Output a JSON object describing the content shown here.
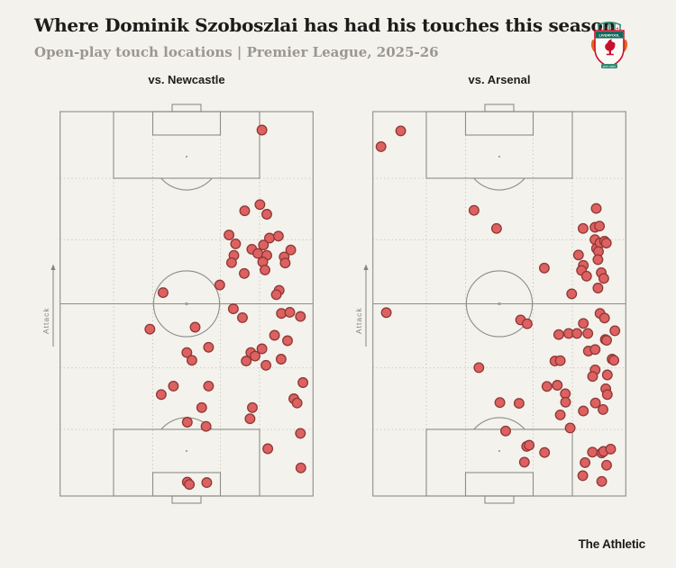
{
  "header": {
    "title": "Where Dominik Szoboszlai has had his touches this season",
    "subtitle": "Open-play touch locations | Premier League, 2025-26"
  },
  "branding": {
    "footer": "The Athletic",
    "crest_name": "Liverpool FC crest",
    "crest_banner": "LIVERPOOL",
    "crest_est": "EST·1892"
  },
  "pitch": {
    "attack_label": "Attack",
    "attack_direction": "up"
  },
  "colors": {
    "background": "#f3f2ec",
    "pitch_line": "#8d8d89",
    "grid_dotted": "#c6c3ba",
    "dot_fill": "#dd6161",
    "dot_stroke": "#8e3734",
    "title_text": "#1d1c1a",
    "subtitle_text": "#9b978e",
    "crest_red": "#c8102e",
    "crest_teal": "#2f8a6f",
    "crest_flame_orange": "#e2661c"
  },
  "chart_data": [
    {
      "type": "scatter",
      "title": "vs. Newcastle",
      "legend_position": "none",
      "grid": "dotted pitch thirds",
      "axes_note": "x: 0 = left touchline, 100 = right touchline; y: 0 = opponent goal line (attack arrow points toward 0), 100 = own goal line",
      "x_range": [
        0,
        100
      ],
      "y_range": [
        0,
        100
      ],
      "points_count": 59,
      "points": [
        [
          79.8,
          4.8
        ],
        [
          73,
          25.8
        ],
        [
          79,
          24.2
        ],
        [
          81.7,
          26.7
        ],
        [
          66.8,
          32.1
        ],
        [
          69.4,
          34.4
        ],
        [
          82.8,
          32.9
        ],
        [
          86.3,
          32.4
        ],
        [
          80.4,
          34.7
        ],
        [
          75.8,
          35.8
        ],
        [
          78.2,
          36.9
        ],
        [
          81.7,
          37.4
        ],
        [
          88.6,
          37.8
        ],
        [
          91.2,
          36
        ],
        [
          68.7,
          37.4
        ],
        [
          67.8,
          39.3
        ],
        [
          80.1,
          39.1
        ],
        [
          81,
          41.2
        ],
        [
          72.8,
          42.1
        ],
        [
          89,
          39.4
        ],
        [
          63.1,
          45.1
        ],
        [
          40.7,
          47.1
        ],
        [
          86.6,
          46.5
        ],
        [
          85.5,
          47.6
        ],
        [
          68.5,
          51.3
        ],
        [
          87.5,
          52.5
        ],
        [
          90.8,
          52.2
        ],
        [
          72.1,
          53.6
        ],
        [
          95,
          53.3
        ],
        [
          53.4,
          56.1
        ],
        [
          35.5,
          56.6
        ],
        [
          84.8,
          58.2
        ],
        [
          89.9,
          59.6
        ],
        [
          58.7,
          61.3
        ],
        [
          50.1,
          62.7
        ],
        [
          52.1,
          64.7
        ],
        [
          79.8,
          61.7
        ],
        [
          75.4,
          62.7
        ],
        [
          77.1,
          63.6
        ],
        [
          73.6,
          64.9
        ],
        [
          87.4,
          64.4
        ],
        [
          81.4,
          66
        ],
        [
          96,
          70.5
        ],
        [
          44.8,
          71.4
        ],
        [
          58.7,
          71.4
        ],
        [
          40,
          73.6
        ],
        [
          92.4,
          74.7
        ],
        [
          93.7,
          75.8
        ],
        [
          56,
          77
        ],
        [
          76,
          77
        ],
        [
          75.1,
          79.9
        ],
        [
          50.3,
          80.8
        ],
        [
          57.7,
          81.9
        ],
        [
          95,
          83.7
        ],
        [
          82.1,
          87.7
        ],
        [
          95.2,
          92.7
        ],
        [
          50.3,
          96.4
        ],
        [
          51.1,
          97
        ],
        [
          58,
          96.5
        ]
      ]
    },
    {
      "type": "scatter",
      "title": "vs. Arsenal",
      "legend_position": "none",
      "grid": "dotted pitch thirds",
      "axes_note": "x: 0 = left touchline, 100 = right touchline; y: 0 = opponent goal line (attack arrow points toward 0), 100 = own goal line",
      "x_range": [
        0,
        100
      ],
      "y_range": [
        0,
        100
      ],
      "points_count": 73,
      "points": [
        [
          11,
          5
        ],
        [
          3.2,
          9.1
        ],
        [
          40,
          25.7
        ],
        [
          48.9,
          30.4
        ],
        [
          88.3,
          25.2
        ],
        [
          83.1,
          30.4
        ],
        [
          87.8,
          30.1
        ],
        [
          89.6,
          29.8
        ],
        [
          87.8,
          33.3
        ],
        [
          88.4,
          35.6
        ],
        [
          89.8,
          34.2
        ],
        [
          91.6,
          33.7
        ],
        [
          92.3,
          34.2
        ],
        [
          89.2,
          36.4
        ],
        [
          81.3,
          37.3
        ],
        [
          89,
          38.5
        ],
        [
          67.8,
          40.7
        ],
        [
          83.2,
          40
        ],
        [
          82.5,
          41.3
        ],
        [
          84.5,
          42.8
        ],
        [
          90.3,
          41.9
        ],
        [
          91.3,
          43.4
        ],
        [
          89,
          45.9
        ],
        [
          78.6,
          47.4
        ],
        [
          5.3,
          52.3
        ],
        [
          89.8,
          52.5
        ],
        [
          91.6,
          53.7
        ],
        [
          58.4,
          54.2
        ],
        [
          61,
          55.2
        ],
        [
          83.2,
          55.1
        ],
        [
          73.5,
          58
        ],
        [
          77.4,
          57.7
        ],
        [
          80.7,
          57.7
        ],
        [
          85,
          57.7
        ],
        [
          95.7,
          57
        ],
        [
          91.9,
          59.3
        ],
        [
          92.4,
          59.5
        ],
        [
          85.2,
          62.3
        ],
        [
          87.9,
          61.9
        ],
        [
          94.6,
          64.4
        ],
        [
          95.3,
          64.7
        ],
        [
          72,
          64.9
        ],
        [
          74.1,
          64.8
        ],
        [
          41.9,
          66.6
        ],
        [
          87.9,
          67.2
        ],
        [
          86.9,
          68.9
        ],
        [
          92.7,
          68.5
        ],
        [
          68.8,
          71.5
        ],
        [
          72.9,
          71.2
        ],
        [
          92.1,
          72.1
        ],
        [
          76.1,
          73.4
        ],
        [
          92.7,
          73.6
        ],
        [
          76.2,
          75.6
        ],
        [
          50.2,
          75.7
        ],
        [
          57.8,
          75.9
        ],
        [
          88,
          75.8
        ],
        [
          91,
          77.5
        ],
        [
          83.2,
          77.9
        ],
        [
          74.1,
          78.9
        ],
        [
          78,
          82.3
        ],
        [
          52.5,
          83.1
        ],
        [
          60.8,
          87.1
        ],
        [
          61.8,
          86.8
        ],
        [
          67.9,
          88.7
        ],
        [
          59.9,
          91.2
        ],
        [
          86.8,
          88.6
        ],
        [
          90.5,
          88.8
        ],
        [
          91.2,
          88.4
        ],
        [
          94,
          87.8
        ],
        [
          83.9,
          91.3
        ],
        [
          92.4,
          92
        ],
        [
          83,
          94.7
        ],
        [
          90.5,
          96.2
        ]
      ]
    }
  ]
}
